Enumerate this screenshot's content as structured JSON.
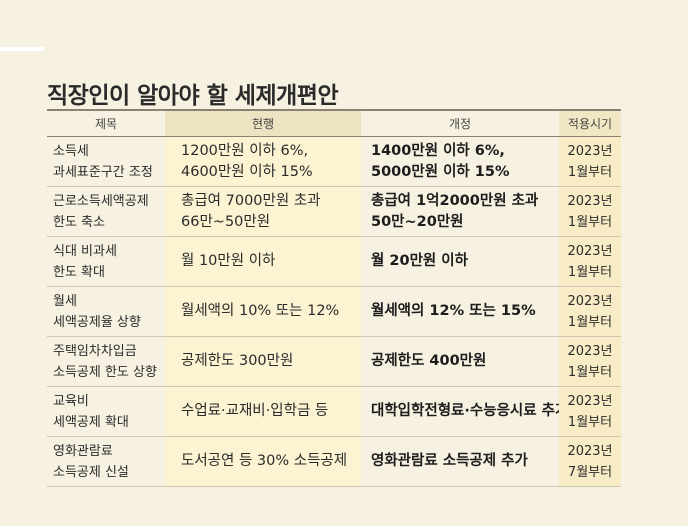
{
  "title": "직장인이 알아야 할 세제개편안",
  "headers": [
    "제목",
    "현행",
    "개정",
    "적용시기"
  ],
  "rows": [
    {
      "subject": [
        "소득세",
        "과세표준구간 조정"
      ],
      "current": [
        "1200만원 이하 6%,",
        "4600만원 이하 15%"
      ],
      "revised": [
        "1400만원 이하 6%,",
        "5000만원 이하 15%"
      ],
      "period": [
        "2023년",
        "1월부터"
      ]
    },
    {
      "subject": [
        "근로소득세액공제",
        "한도 축소"
      ],
      "current": [
        "총급여 7000만원 초과",
        "66만~50만원"
      ],
      "revised": [
        "총급여 1억2000만원 초과",
        "50만~20만원"
      ],
      "period": [
        "2023년",
        "1월부터"
      ]
    },
    {
      "subject": [
        "식대 비과세",
        "한도 확대"
      ],
      "current": [
        "월 10만원 이하"
      ],
      "revised": [
        "월 20만원 이하"
      ],
      "period": [
        "2023년",
        "1월부터"
      ]
    },
    {
      "subject": [
        "월세",
        "세액공제율 상향"
      ],
      "current": [
        "월세액의 10% 또는 12%"
      ],
      "revised": [
        "월세액의 12% 또는 15%"
      ],
      "period": [
        "2023년",
        "1월부터"
      ]
    },
    {
      "subject": [
        "주택임차차입금",
        "소득공제 한도 상향"
      ],
      "current": [
        "공제한도 300만원"
      ],
      "revised": [
        "공제한도 400만원"
      ],
      "period": [
        "2023년",
        "1월부터"
      ]
    },
    {
      "subject": [
        "교육비",
        "세액공제 확대"
      ],
      "current": [
        "수업료·교재비·입학금 등"
      ],
      "revised": [
        "대학입학전형료·수능응시료 추가"
      ],
      "period": [
        "2023년",
        "1월부터"
      ]
    },
    {
      "subject": [
        "영화관람료",
        "소득공제 신설"
      ],
      "current": [
        "도서공연 등 30% 소득공제"
      ],
      "revised": [
        "영화관람료 소득공제 추가"
      ],
      "period": [
        "2023년",
        "7월부터"
      ]
    }
  ]
}
